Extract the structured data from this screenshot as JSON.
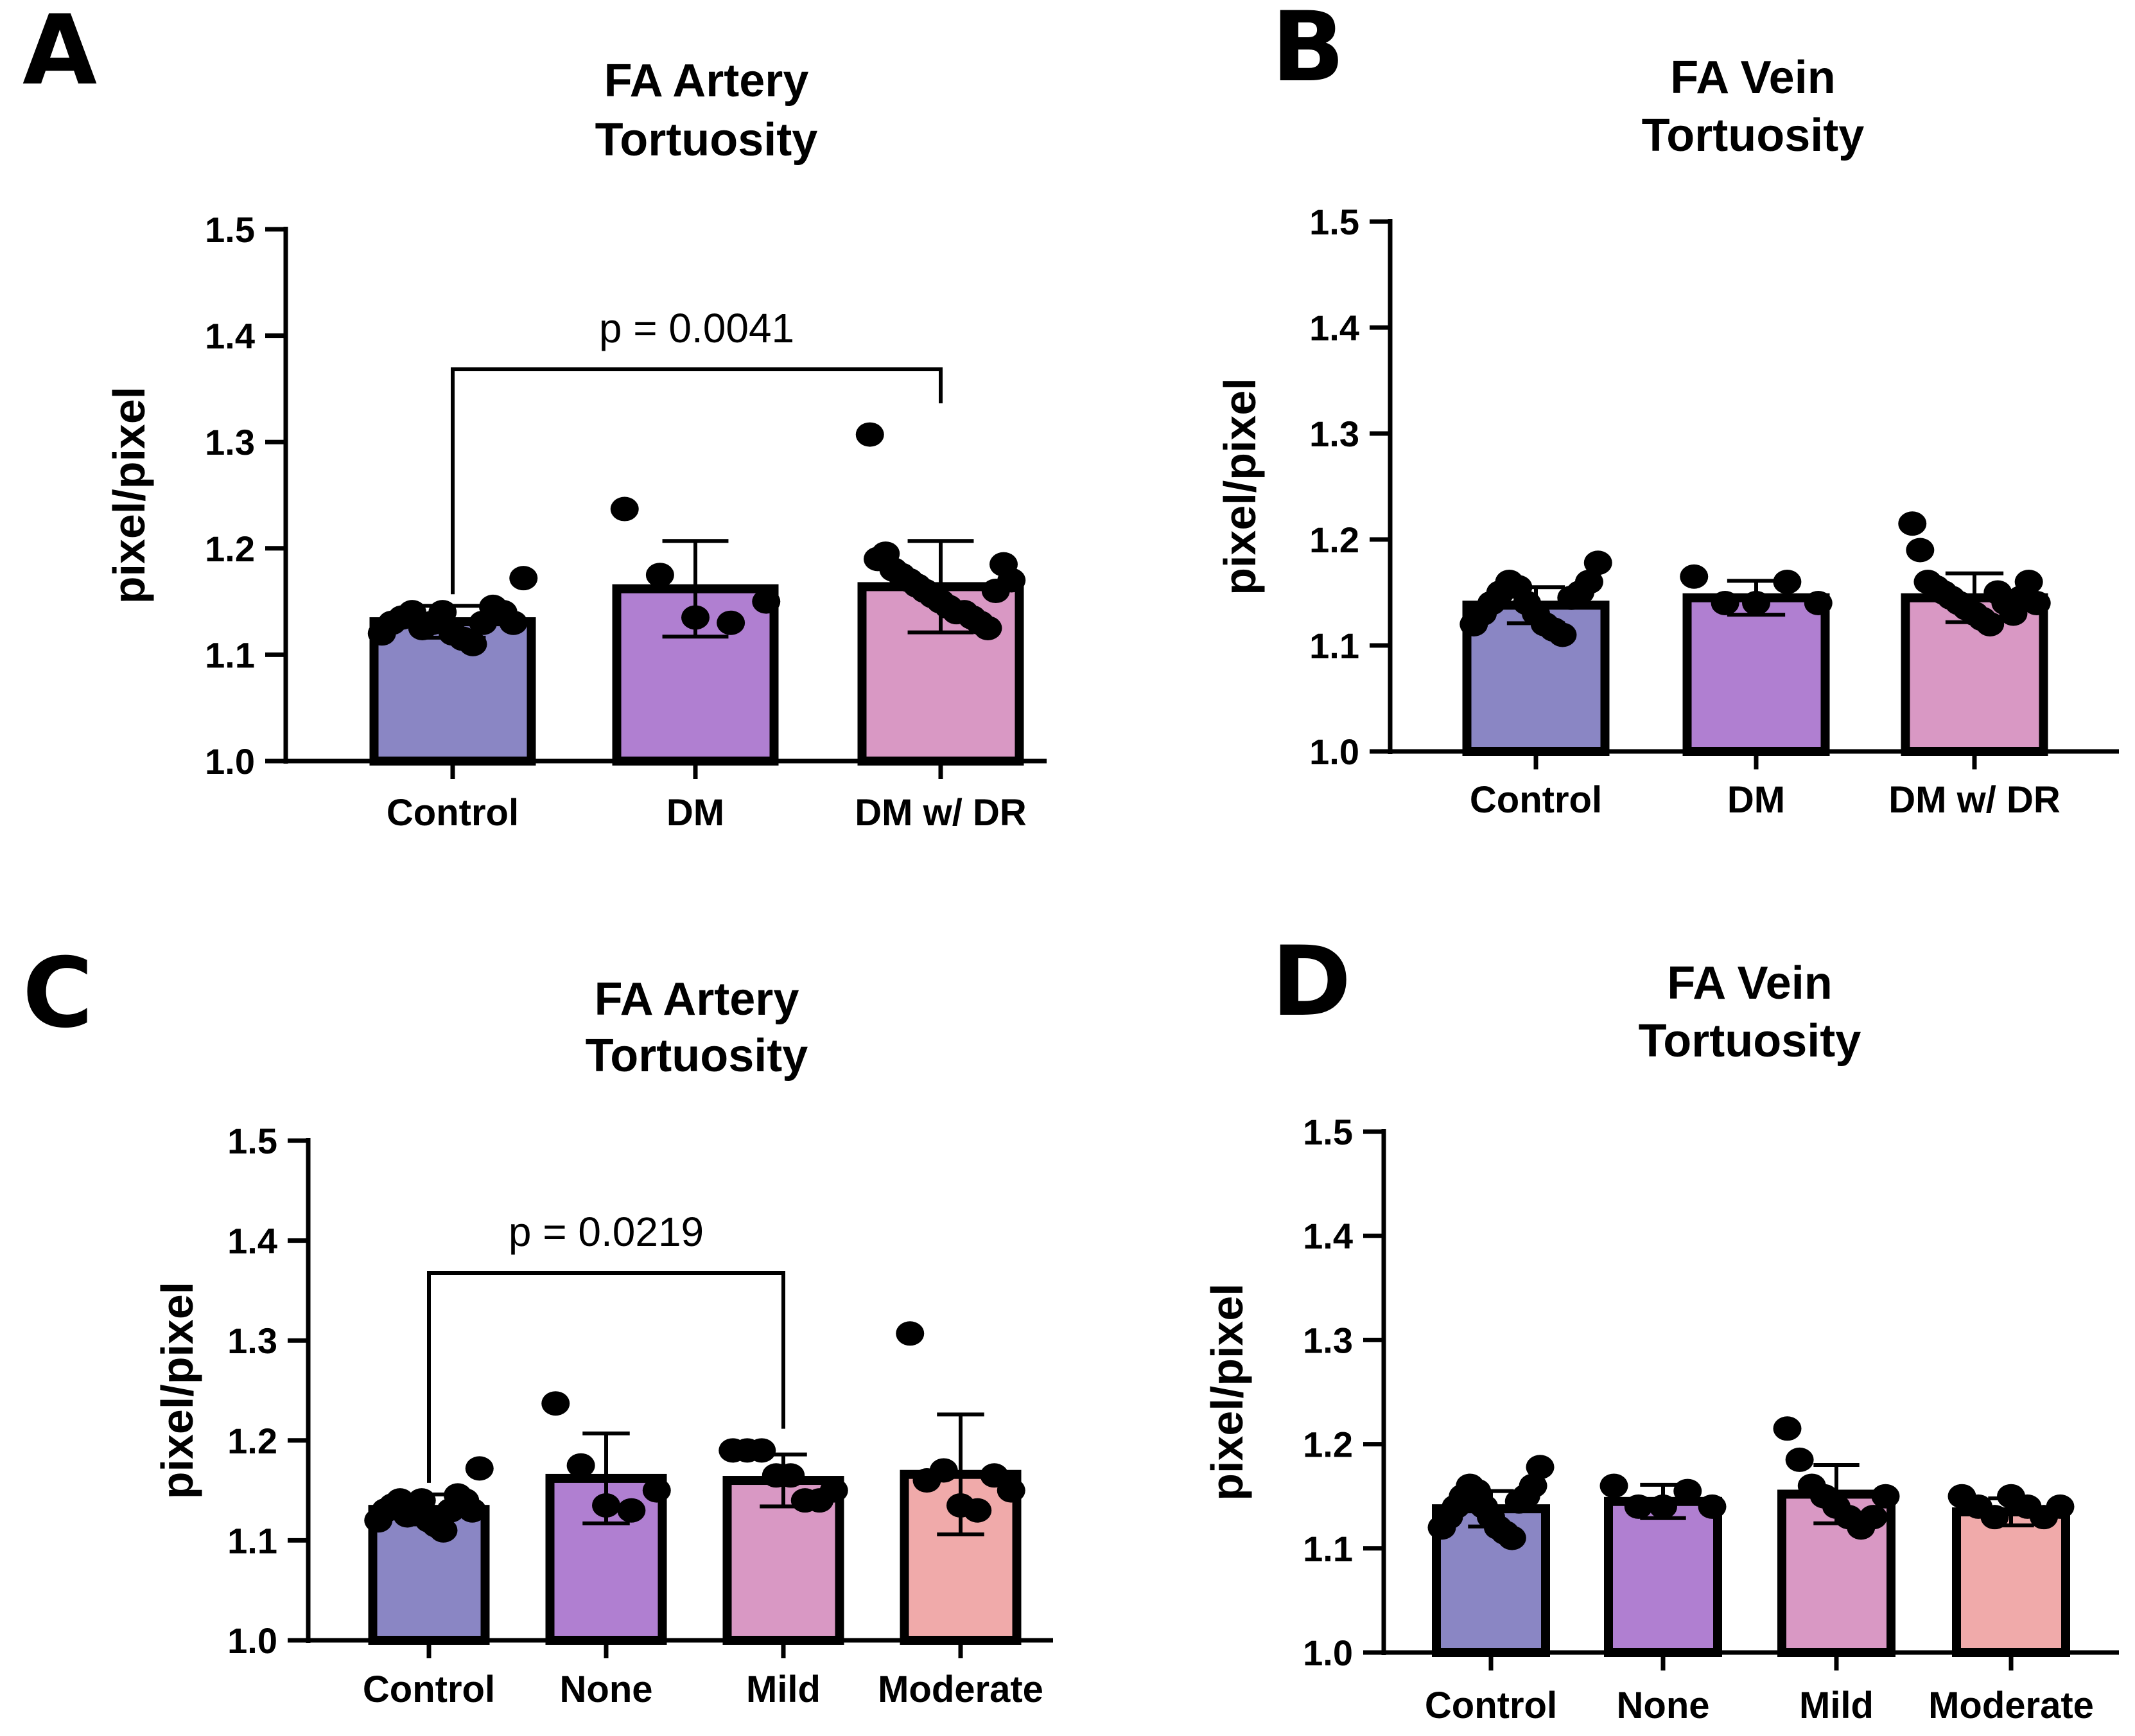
{
  "chart_data": [
    {
      "panel": "A",
      "type": "bar",
      "title": [
        "FA Artery",
        "Tortuosity"
      ],
      "xlabel": "",
      "ylabel": "pixel/pixel",
      "ylim": [
        1.0,
        1.5
      ],
      "yticks": [
        "1.0",
        "1.1",
        "1.2",
        "1.3",
        "1.4",
        "1.5"
      ],
      "categories": [
        "Control",
        "DM",
        "DM w/ DR"
      ],
      "values": [
        1.131,
        1.162,
        1.164
      ],
      "errors": [
        0.015,
        0.045,
        0.043
      ],
      "colors": [
        "#8a86c4",
        "#b07fd1",
        "#d998c4"
      ],
      "points": [
        [
          1.12,
          1.13,
          1.135,
          1.14,
          1.125,
          1.13,
          1.14,
          1.12,
          1.115,
          1.11,
          1.13,
          1.145,
          1.14,
          1.13,
          1.172
        ],
        [
          1.237,
          1.175,
          1.135,
          1.13,
          1.15
        ],
        [
          1.307,
          1.19,
          1.195,
          1.18,
          1.175,
          1.17,
          1.165,
          1.16,
          1.155,
          1.15,
          1.145,
          1.14,
          1.14,
          1.135,
          1.13,
          1.125,
          1.16,
          1.185,
          1.17
        ]
      ],
      "comparison": {
        "from": 0,
        "to": 2,
        "label": "p = 0.0041"
      }
    },
    {
      "panel": "B",
      "type": "bar",
      "title": [
        "FA Vein",
        "Tortuosity"
      ],
      "xlabel": "",
      "ylabel": "pixel/pixel",
      "ylim": [
        1.0,
        1.5
      ],
      "yticks": [
        "1.0",
        "1.1",
        "1.2",
        "1.3",
        "1.4",
        "1.5"
      ],
      "categories": [
        "Control",
        "DM",
        "DM w/ DR"
      ],
      "values": [
        1.138,
        1.145,
        1.145
      ],
      "errors": [
        0.017,
        0.016,
        0.023
      ],
      "colors": [
        "#8a86c4",
        "#b07fd1",
        "#d998c4"
      ],
      "points": [
        [
          1.12,
          1.13,
          1.14,
          1.15,
          1.16,
          1.155,
          1.14,
          1.13,
          1.12,
          1.115,
          1.11,
          1.145,
          1.15,
          1.16,
          1.178
        ],
        [
          1.165,
          1.14,
          1.14,
          1.16,
          1.14
        ],
        [
          1.215,
          1.19,
          1.16,
          1.155,
          1.15,
          1.145,
          1.14,
          1.135,
          1.13,
          1.125,
          1.12,
          1.15,
          1.14,
          1.13,
          1.145,
          1.16,
          1.14
        ]
      ],
      "comparison": null
    },
    {
      "panel": "C",
      "type": "bar",
      "title": [
        "FA Artery",
        "Tortuosity"
      ],
      "xlabel": "",
      "ylabel": "pixel/pixel",
      "ylim": [
        1.0,
        1.5
      ],
      "yticks": [
        "1.0",
        "1.1",
        "1.2",
        "1.3",
        "1.4",
        "1.5"
      ],
      "categories": [
        "Control",
        "None",
        "Mild",
        "Moderate"
      ],
      "values": [
        1.131,
        1.162,
        1.16,
        1.166
      ],
      "errors": [
        0.015,
        0.045,
        0.026,
        0.06
      ],
      "colors": [
        "#8a86c4",
        "#b07fd1",
        "#d998c4",
        "#f0aaaa"
      ],
      "points": [
        [
          1.12,
          1.13,
          1.135,
          1.14,
          1.125,
          1.13,
          1.14,
          1.12,
          1.115,
          1.11,
          1.13,
          1.145,
          1.14,
          1.13,
          1.172
        ],
        [
          1.237,
          1.175,
          1.135,
          1.13,
          1.15
        ],
        [
          1.19,
          1.19,
          1.19,
          1.165,
          1.165,
          1.14,
          1.14,
          1.15
        ],
        [
          1.307,
          1.16,
          1.17,
          1.135,
          1.13,
          1.165,
          1.15
        ]
      ],
      "comparison": {
        "from": 0,
        "to": 2,
        "label": "p = 0.0219"
      }
    },
    {
      "panel": "D",
      "type": "bar",
      "title": [
        "FA Vein",
        "Tortuosity"
      ],
      "xlabel": "",
      "ylabel": "pixel/pixel",
      "ylim": [
        1.0,
        1.5
      ],
      "yticks": [
        "1.0",
        "1.1",
        "1.2",
        "1.3",
        "1.4",
        "1.5"
      ],
      "categories": [
        "Control",
        "None",
        "Mild",
        "Moderate"
      ],
      "values": [
        1.138,
        1.145,
        1.152,
        1.135
      ],
      "errors": [
        0.017,
        0.016,
        0.028,
        0.013
      ],
      "colors": [
        "#8a86c4",
        "#b07fd1",
        "#d998c4",
        "#f0aaaa"
      ],
      "points": [
        [
          1.12,
          1.13,
          1.14,
          1.15,
          1.16,
          1.155,
          1.14,
          1.13,
          1.12,
          1.115,
          1.11,
          1.145,
          1.15,
          1.16,
          1.178
        ],
        [
          1.16,
          1.14,
          1.14,
          1.155,
          1.14
        ],
        [
          1.215,
          1.185,
          1.16,
          1.15,
          1.14,
          1.13,
          1.12,
          1.13,
          1.15
        ],
        [
          1.15,
          1.14,
          1.13,
          1.15,
          1.14,
          1.13,
          1.14
        ]
      ],
      "comparison": null
    }
  ]
}
